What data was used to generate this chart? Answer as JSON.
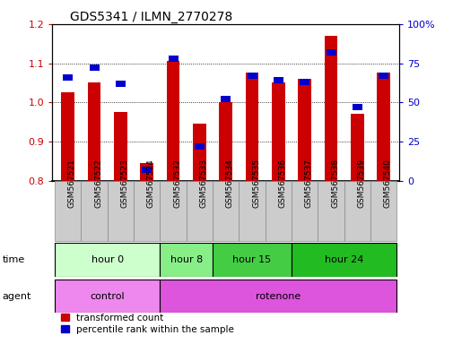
{
  "title": "GDS5341 / ILMN_2770278",
  "samples": [
    "GSM567521",
    "GSM567522",
    "GSM567523",
    "GSM567524",
    "GSM567532",
    "GSM567533",
    "GSM567534",
    "GSM567535",
    "GSM567536",
    "GSM567537",
    "GSM567538",
    "GSM567539",
    "GSM567540"
  ],
  "red_values": [
    1.025,
    1.05,
    0.975,
    0.845,
    1.105,
    0.945,
    1.0,
    1.075,
    1.05,
    1.06,
    1.17,
    0.97,
    1.075
  ],
  "blue_values": [
    66,
    72,
    62,
    7,
    78,
    22,
    52,
    67,
    64,
    63,
    82,
    47,
    67
  ],
  "ylim_left": [
    0.8,
    1.2
  ],
  "ylim_right": [
    0,
    100
  ],
  "red_color": "#cc0000",
  "blue_color": "#0000cc",
  "bar_width": 0.5,
  "groups": [
    {
      "label": "hour 0",
      "start": 0,
      "end": 4,
      "color": "#ccffcc"
    },
    {
      "label": "hour 8",
      "start": 4,
      "end": 6,
      "color": "#88ee88"
    },
    {
      "label": "hour 15",
      "start": 6,
      "end": 9,
      "color": "#44cc44"
    },
    {
      "label": "hour 24",
      "start": 9,
      "end": 13,
      "color": "#22bb22"
    }
  ],
  "agents": [
    {
      "label": "control",
      "start": 0,
      "end": 4,
      "color": "#ee88ee"
    },
    {
      "label": "rotenone",
      "start": 4,
      "end": 13,
      "color": "#dd55dd"
    }
  ],
  "grid_vals": [
    0.9,
    1.0,
    1.1
  ],
  "left_ticks": [
    0.8,
    0.9,
    1.0,
    1.1,
    1.2
  ],
  "right_ticks": [
    0,
    25,
    50,
    75,
    100
  ],
  "right_tick_labels": [
    "0",
    "25",
    "50",
    "75",
    "100%"
  ],
  "time_label": "time",
  "agent_label": "agent",
  "legend_red": "transformed count",
  "legend_blue": "percentile rank within the sample",
  "tick_bg_color": "#cccccc",
  "tick_border_color": "#888888"
}
